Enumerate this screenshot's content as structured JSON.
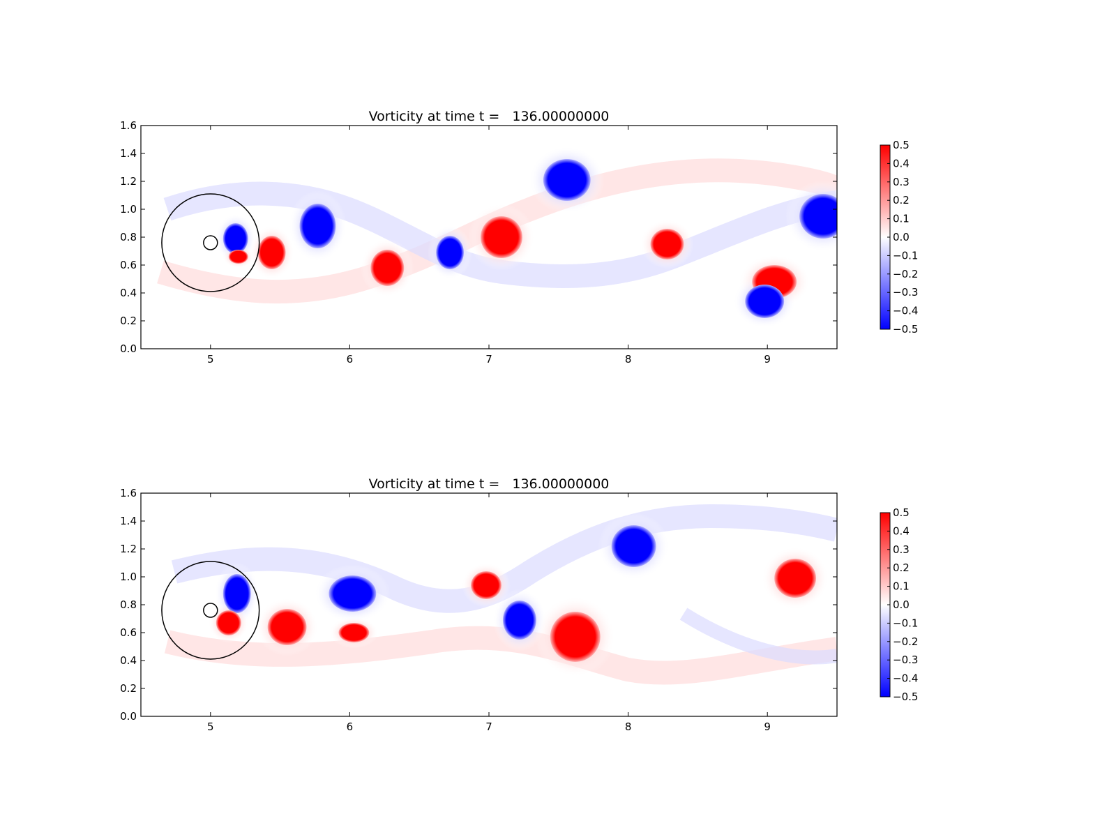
{
  "chart_data": [
    {
      "type": "heatmap",
      "title": "Vorticity at time t =   136.00000000",
      "xlabel": "",
      "ylabel": "",
      "xlim": [
        4.5,
        9.5
      ],
      "ylim": [
        0.0,
        1.6
      ],
      "xticks": [
        "5",
        "6",
        "7",
        "8",
        "9"
      ],
      "yticks": [
        "0.0",
        "0.2",
        "0.4",
        "0.6",
        "0.8",
        "1.0",
        "1.2",
        "1.4",
        "1.6"
      ],
      "colormap": {
        "negative": "#0000ff",
        "zero": "#ffffff",
        "positive": "#ff0000"
      },
      "colorbar": {
        "min": -0.5,
        "max": 0.5,
        "ticks": [
          "0.5",
          "0.4",
          "0.3",
          "0.2",
          "0.1",
          "0.0",
          "−0.1",
          "−0.2",
          "−0.3",
          "−0.4",
          "−0.5"
        ]
      },
      "circles": [
        {
          "cx": 5.0,
          "cy": 0.76,
          "r": 0.35
        },
        {
          "cx": 5.0,
          "cy": 0.76,
          "r": 0.05
        }
      ],
      "vortices": [
        {
          "x": 5.18,
          "y": 0.79,
          "rx": 0.09,
          "ry": 0.11,
          "value": -0.5
        },
        {
          "x": 5.2,
          "y": 0.66,
          "rx": 0.07,
          "ry": 0.05,
          "value": 0.5
        },
        {
          "x": 5.44,
          "y": 0.69,
          "rx": 0.1,
          "ry": 0.12,
          "value": 0.5
        },
        {
          "x": 5.77,
          "y": 0.88,
          "rx": 0.13,
          "ry": 0.16,
          "value": -0.5
        },
        {
          "x": 6.27,
          "y": 0.58,
          "rx": 0.12,
          "ry": 0.13,
          "value": 0.5
        },
        {
          "x": 6.72,
          "y": 0.69,
          "rx": 0.1,
          "ry": 0.12,
          "value": -0.5
        },
        {
          "x": 7.09,
          "y": 0.8,
          "rx": 0.15,
          "ry": 0.15,
          "value": 0.5
        },
        {
          "x": 7.56,
          "y": 1.21,
          "rx": 0.17,
          "ry": 0.15,
          "value": -0.5
        },
        {
          "x": 8.28,
          "y": 0.75,
          "rx": 0.12,
          "ry": 0.11,
          "value": 0.5
        },
        {
          "x": 9.4,
          "y": 0.95,
          "rx": 0.17,
          "ry": 0.16,
          "value": -0.5
        },
        {
          "x": 9.05,
          "y": 0.48,
          "rx": 0.16,
          "ry": 0.12,
          "value": 0.5
        },
        {
          "x": 8.98,
          "y": 0.34,
          "rx": 0.14,
          "ry": 0.12,
          "value": -0.5
        }
      ]
    },
    {
      "type": "heatmap",
      "title": "Vorticity at time t =   136.00000000",
      "xlabel": "",
      "ylabel": "",
      "xlim": [
        4.5,
        9.5
      ],
      "ylim": [
        0.0,
        1.6
      ],
      "xticks": [
        "5",
        "6",
        "7",
        "8",
        "9"
      ],
      "yticks": [
        "0.0",
        "0.2",
        "0.4",
        "0.6",
        "0.8",
        "1.0",
        "1.2",
        "1.4",
        "1.6"
      ],
      "colormap": {
        "negative": "#0000ff",
        "zero": "#ffffff",
        "positive": "#ff0000"
      },
      "colorbar": {
        "min": -0.5,
        "max": 0.5,
        "ticks": [
          "0.5",
          "0.4",
          "0.3",
          "0.2",
          "0.1",
          "0.0",
          "−0.1",
          "−0.2",
          "−0.3",
          "−0.4",
          "−0.5"
        ]
      },
      "circles": [
        {
          "cx": 5.0,
          "cy": 0.76,
          "r": 0.35
        },
        {
          "cx": 5.0,
          "cy": 0.76,
          "r": 0.05
        }
      ],
      "vortices": [
        {
          "x": 5.19,
          "y": 0.88,
          "rx": 0.1,
          "ry": 0.14,
          "value": -0.5
        },
        {
          "x": 5.13,
          "y": 0.67,
          "rx": 0.09,
          "ry": 0.09,
          "value": 0.5
        },
        {
          "x": 5.55,
          "y": 0.64,
          "rx": 0.14,
          "ry": 0.13,
          "value": 0.5
        },
        {
          "x": 6.02,
          "y": 0.88,
          "rx": 0.17,
          "ry": 0.13,
          "value": -0.5
        },
        {
          "x": 6.03,
          "y": 0.6,
          "rx": 0.11,
          "ry": 0.07,
          "value": 0.5
        },
        {
          "x": 6.98,
          "y": 0.94,
          "rx": 0.11,
          "ry": 0.1,
          "value": 0.5
        },
        {
          "x": 7.22,
          "y": 0.69,
          "rx": 0.12,
          "ry": 0.14,
          "value": -0.5
        },
        {
          "x": 7.62,
          "y": 0.57,
          "rx": 0.18,
          "ry": 0.18,
          "value": 0.5
        },
        {
          "x": 8.04,
          "y": 1.22,
          "rx": 0.16,
          "ry": 0.15,
          "value": -0.5
        },
        {
          "x": 9.2,
          "y": 0.99,
          "rx": 0.15,
          "ry": 0.14,
          "value": 0.5
        }
      ]
    }
  ]
}
